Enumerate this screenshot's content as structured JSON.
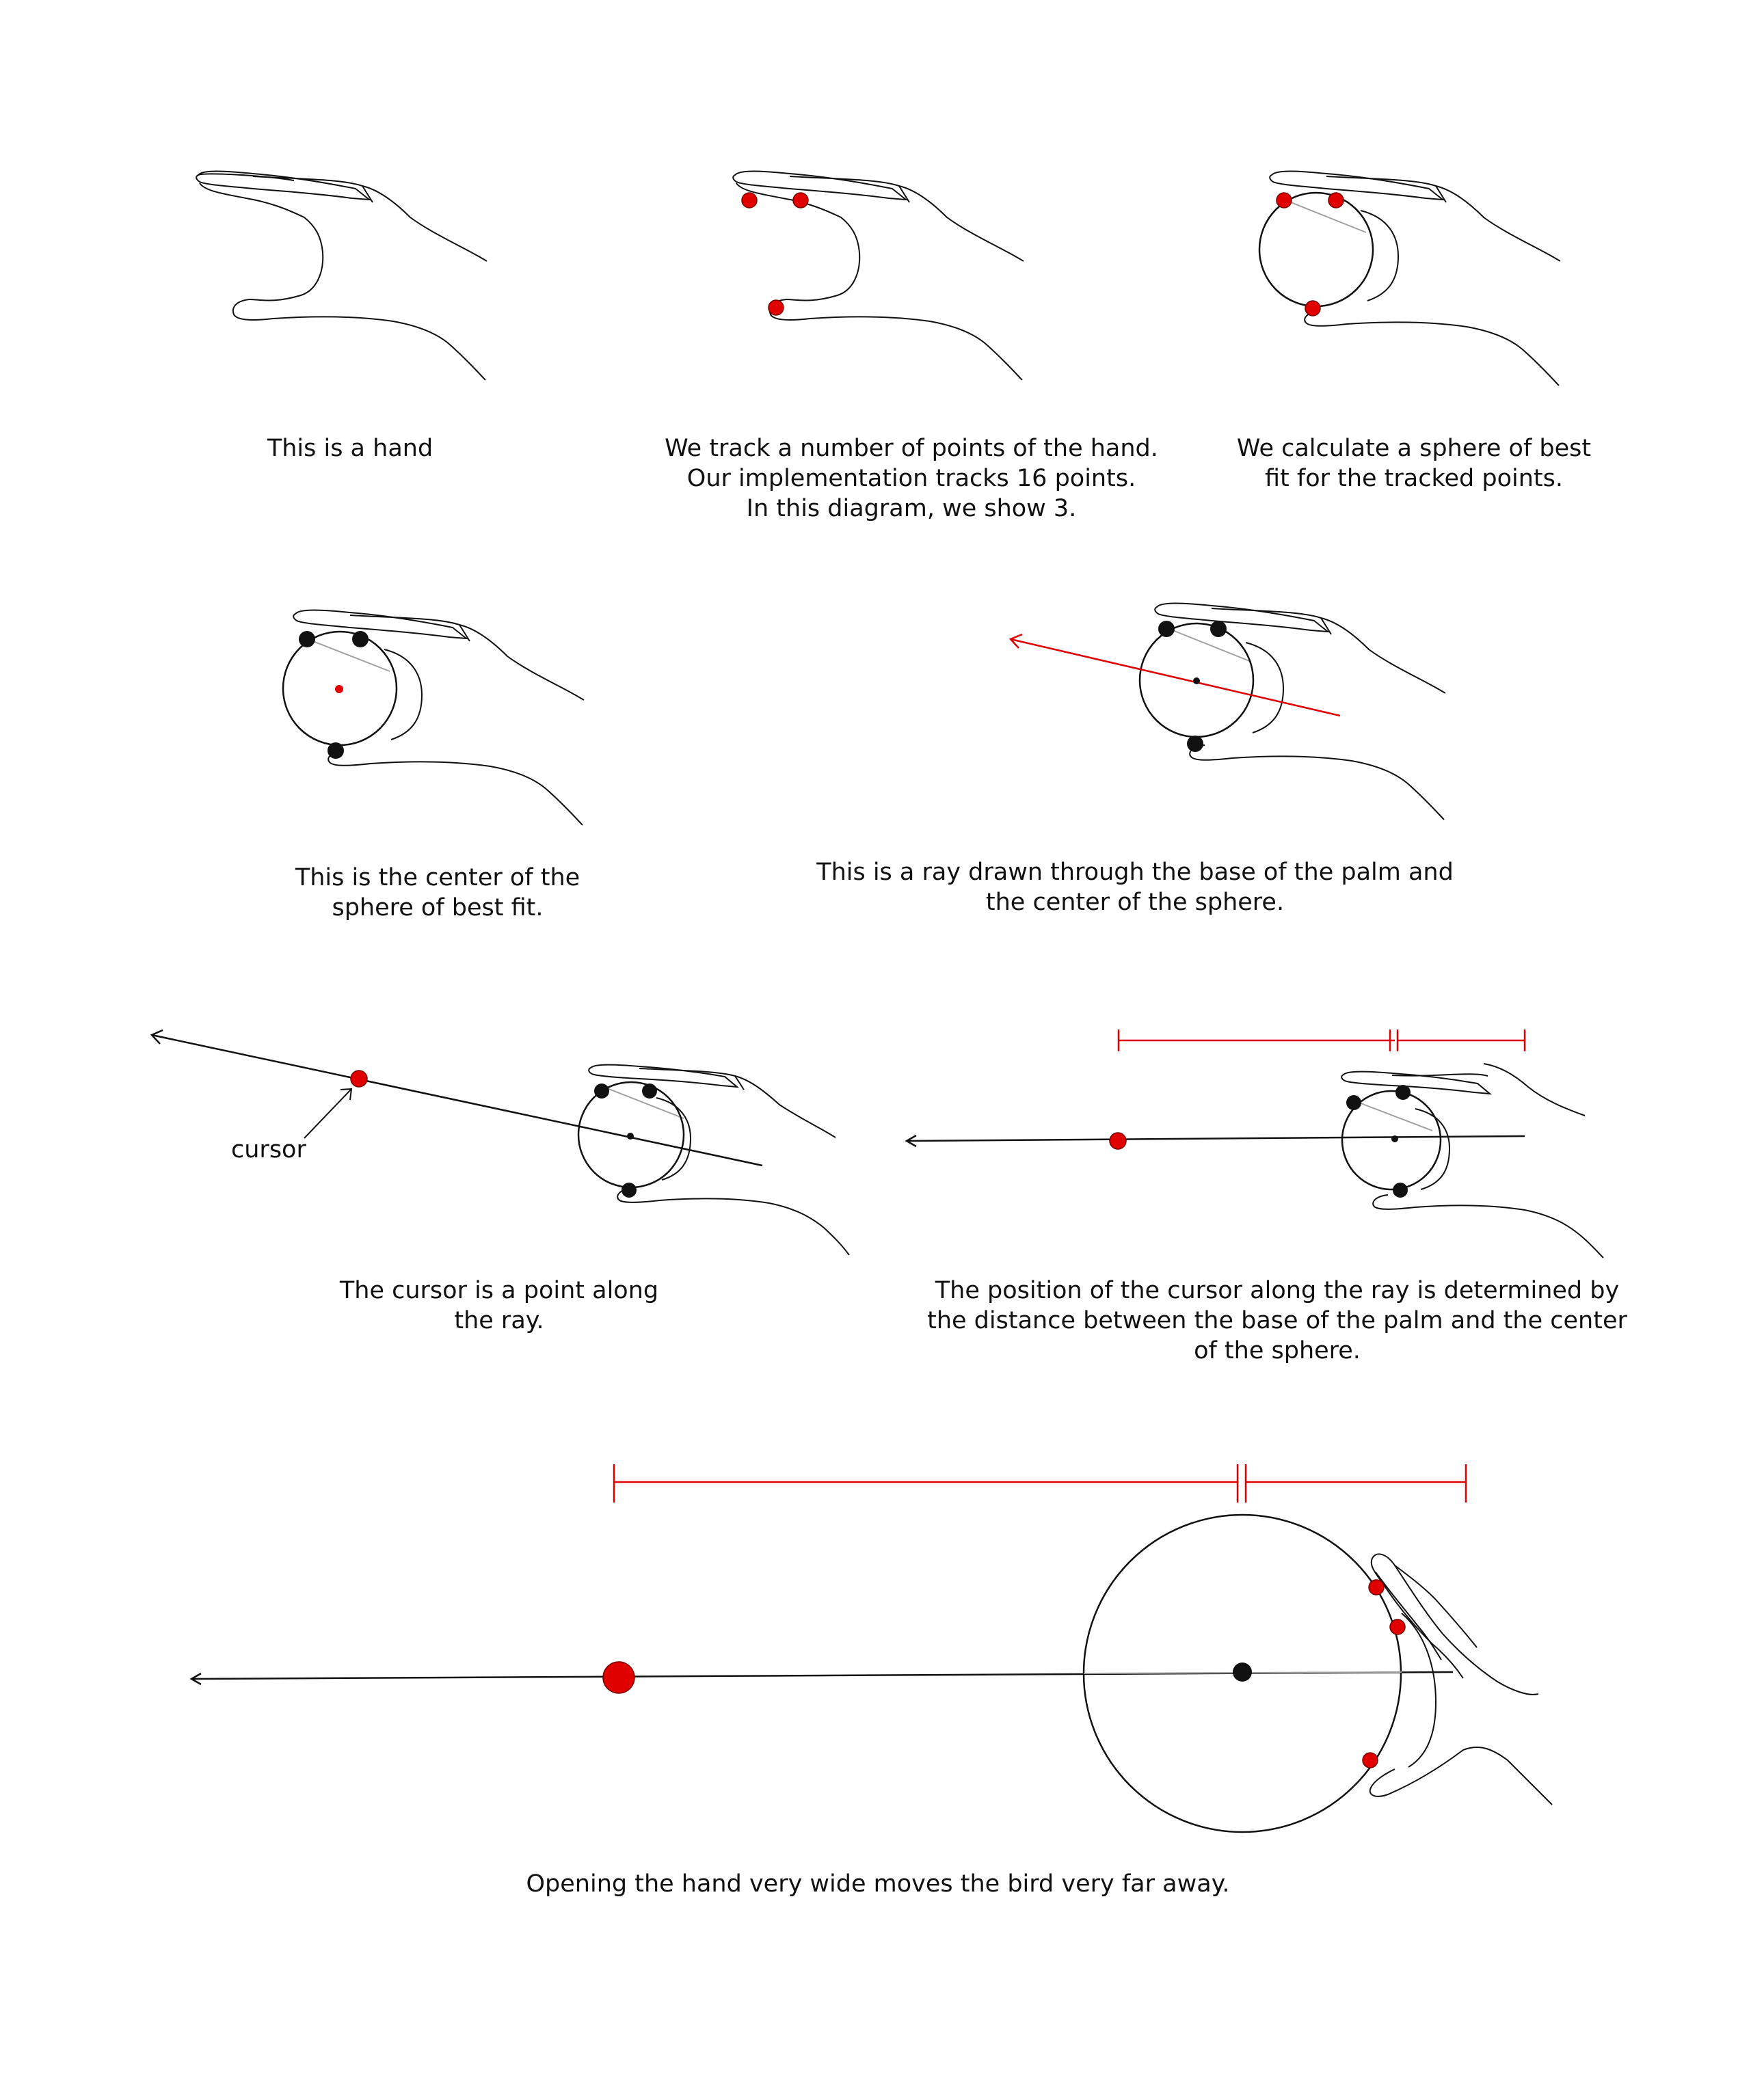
{
  "colors": {
    "accent": "#e00000",
    "ink": "#111111",
    "guide": "#a0a0a0"
  },
  "panels": [
    {
      "id": "hand",
      "caption": [
        "This is a hand"
      ]
    },
    {
      "id": "tracked-points",
      "caption": [
        "We track a number of points of the hand.",
        "Our implementation tracks 16 points.",
        "In this diagram, we show 3."
      ]
    },
    {
      "id": "best-fit-sphere",
      "caption": [
        "We calculate a sphere of best",
        "fit for the tracked points."
      ]
    },
    {
      "id": "sphere-center",
      "caption": [
        "This is the center of the",
        "sphere of best fit."
      ]
    },
    {
      "id": "ray",
      "caption": [
        "This is a ray drawn through the base of the palm and",
        "the center of the sphere."
      ]
    },
    {
      "id": "cursor-on-ray",
      "caption": [
        "The cursor is a point along",
        "the ray."
      ],
      "label": "cursor"
    },
    {
      "id": "cursor-distance",
      "caption": [
        "The position of the cursor along the ray is determined by",
        "the distance between the base of the palm and the center",
        "of the sphere."
      ]
    },
    {
      "id": "wide-open-hand",
      "caption": [
        "Opening the hand very wide moves the bird very far away."
      ]
    }
  ]
}
